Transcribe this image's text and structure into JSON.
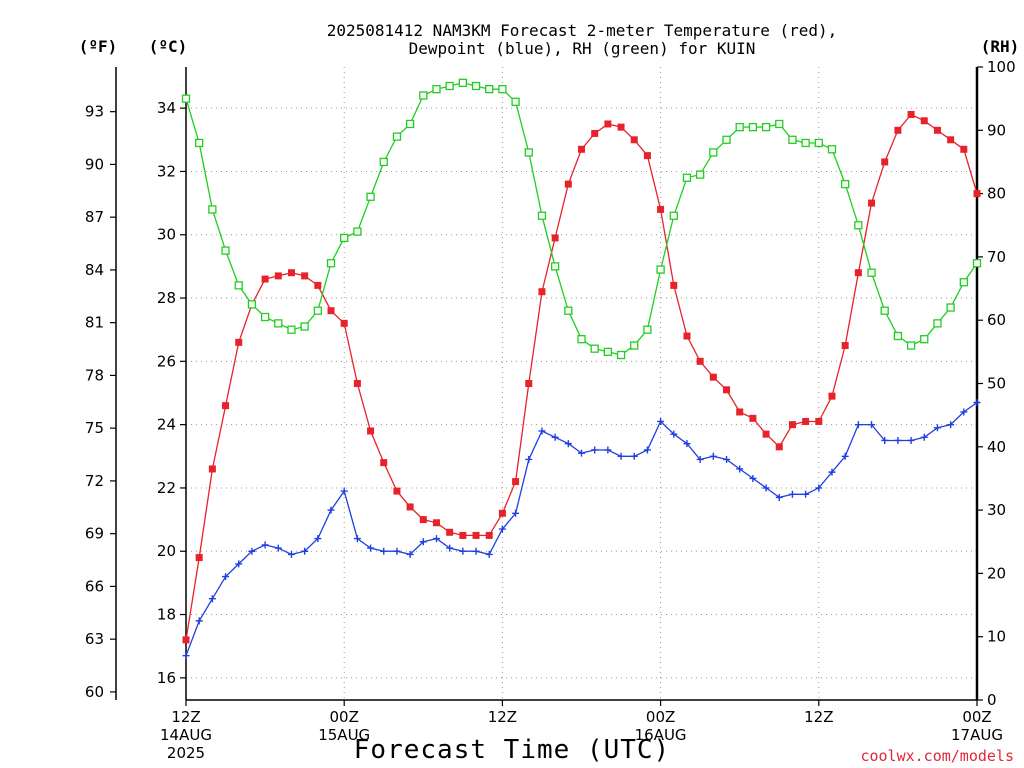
{
  "chart_data": {
    "type": "line",
    "title": [
      "2025081412 NAM3KM Forecast 2-meter Temperature (red),",
      "Dewpoint (blue), RH (green) for KUIN"
    ],
    "xlabel": "Forecast Time (UTC)",
    "credit": "coolwx.com/models",
    "units": {
      "fahrenheit": "(ºF)",
      "celsius": "(ºC)",
      "rh": "(RH)"
    },
    "x_hours_from_start": {
      "min": 0,
      "max": 60,
      "step": 1
    },
    "x_ticks": [
      {
        "hour": 0,
        "lines": [
          "12Z",
          "14AUG",
          "2025"
        ]
      },
      {
        "hour": 12,
        "lines": [
          "00Z",
          "15AUG"
        ]
      },
      {
        "hour": 24,
        "lines": [
          "12Z"
        ]
      },
      {
        "hour": 36,
        "lines": [
          "00Z",
          "16AUG"
        ]
      },
      {
        "hour": 48,
        "lines": [
          "12Z"
        ]
      },
      {
        "hour": 60,
        "lines": [
          "00Z",
          "17AUG"
        ]
      }
    ],
    "ylim_c": [
      15.3,
      35.3
    ],
    "ylim_rh": [
      0,
      100
    ],
    "celsius_ticks": [
      16,
      18,
      20,
      22,
      24,
      26,
      28,
      30,
      32,
      34
    ],
    "fahrenheit_ticks": [
      60,
      63,
      66,
      69,
      72,
      75,
      78,
      81,
      84,
      87,
      90,
      93
    ],
    "rh_ticks": [
      0,
      10,
      20,
      30,
      40,
      50,
      60,
      70,
      80,
      90,
      100
    ],
    "grid": true,
    "series": [
      {
        "name": "Temperature",
        "color": "#e8222a",
        "marker": "filled-square",
        "axis": "celsius",
        "values": [
          17.2,
          19.8,
          22.6,
          24.6,
          26.6,
          27.8,
          28.6,
          28.7,
          28.8,
          28.7,
          28.4,
          27.6,
          27.2,
          25.3,
          23.8,
          22.8,
          21.9,
          21.4,
          21.0,
          20.9,
          20.6,
          20.5,
          20.5,
          20.5,
          21.2,
          22.2,
          25.3,
          28.2,
          29.9,
          31.6,
          32.7,
          33.2,
          33.5,
          33.4,
          33.0,
          32.5,
          30.8,
          28.4,
          26.8,
          26.0,
          25.5,
          25.1,
          24.4,
          24.2,
          23.7,
          23.3,
          24.0,
          24.1,
          24.1,
          24.9,
          26.5,
          28.8,
          31.0,
          32.3,
          33.3,
          33.8,
          33.6,
          33.3,
          33.0,
          32.7,
          31.3
        ]
      },
      {
        "name": "Dewpoint",
        "color": "#1f3fe0",
        "marker": "plus",
        "axis": "celsius",
        "values": [
          16.7,
          17.8,
          18.5,
          19.2,
          19.6,
          20.0,
          20.2,
          20.1,
          19.9,
          20.0,
          20.4,
          21.3,
          21.9,
          20.4,
          20.1,
          20.0,
          20.0,
          19.9,
          20.3,
          20.4,
          20.1,
          20.0,
          20.0,
          19.9,
          20.7,
          21.2,
          22.9,
          23.8,
          23.6,
          23.4,
          23.1,
          23.2,
          23.2,
          23.0,
          23.0,
          23.2,
          24.1,
          23.7,
          23.4,
          22.9,
          23.0,
          22.9,
          22.6,
          22.3,
          22.0,
          21.7,
          21.8,
          21.8,
          22.0,
          22.5,
          23.0,
          24.0,
          24.0,
          23.5,
          23.5,
          23.5,
          23.6,
          23.9,
          24.0,
          24.4,
          24.7
        ]
      },
      {
        "name": "RH",
        "color": "#1fcf1f",
        "marker": "open-square",
        "axis": "rh",
        "values": [
          95,
          88,
          77.5,
          71,
          65.5,
          62.5,
          60.5,
          59.5,
          58.5,
          59,
          61.5,
          69,
          73,
          74,
          79.5,
          85,
          89,
          91,
          95.5,
          96.5,
          97,
          97.5,
          97,
          96.5,
          96.5,
          94.5,
          86.5,
          76.5,
          68.5,
          61.5,
          57,
          55.5,
          55,
          54.5,
          56,
          58.5,
          68,
          76.5,
          82.5,
          83,
          86.5,
          88.5,
          90.5,
          90.5,
          90.5,
          91,
          88.5,
          88,
          88,
          87,
          81.5,
          75,
          67.5,
          61.5,
          57.5,
          56,
          57,
          59.5,
          62,
          66,
          69
        ]
      }
    ]
  }
}
